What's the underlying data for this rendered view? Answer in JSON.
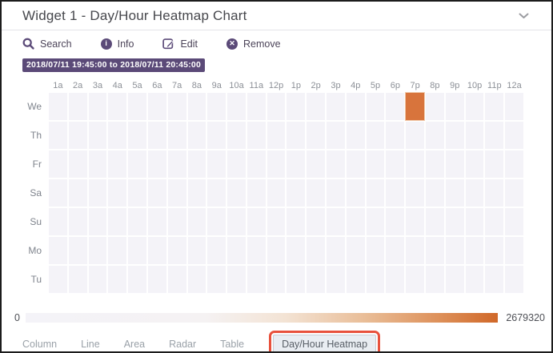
{
  "window": {
    "title": "Widget 1 - Day/Hour Heatmap Chart"
  },
  "toolbar": {
    "items": [
      {
        "label": "Search",
        "icon": "search-icon"
      },
      {
        "label": "Info",
        "icon": "info-icon"
      },
      {
        "label": "Edit",
        "icon": "edit-icon"
      },
      {
        "label": "Remove",
        "icon": "remove-icon"
      }
    ]
  },
  "time_range": {
    "label": "2018/07/11 19:45:00 to 2018/07/11 20:45:00"
  },
  "chart_data": {
    "type": "heatmap",
    "title": "Day/Hour Heatmap",
    "x_labels": [
      "1a",
      "2a",
      "3a",
      "4a",
      "5a",
      "6a",
      "7a",
      "8a",
      "9a",
      "10a",
      "11a",
      "12p",
      "1p",
      "2p",
      "3p",
      "4p",
      "5p",
      "6p",
      "7p",
      "8p",
      "9p",
      "10p",
      "11p",
      "12a"
    ],
    "y_labels": [
      "We",
      "Th",
      "Fr",
      "Sa",
      "Su",
      "Mo",
      "Tu"
    ],
    "cells": [
      {
        "day": "We",
        "hour": "7p",
        "value": 2679320
      }
    ],
    "value_range": [
      0,
      2679320
    ],
    "legend": {
      "min_label": "0",
      "max_label": "2679320",
      "position": "bottom"
    },
    "colors": {
      "empty_cell": "#f4f3f8",
      "max_cell": "#d8743c",
      "accent_purple": "#5b4a78"
    }
  },
  "tabs": {
    "items": [
      {
        "label": "Column",
        "selected": false
      },
      {
        "label": "Line",
        "selected": false
      },
      {
        "label": "Area",
        "selected": false
      },
      {
        "label": "Radar",
        "selected": false
      },
      {
        "label": "Table",
        "selected": false
      },
      {
        "label": "Day/Hour Heatmap",
        "selected": true
      }
    ],
    "highlight_color": "#e8513c"
  }
}
